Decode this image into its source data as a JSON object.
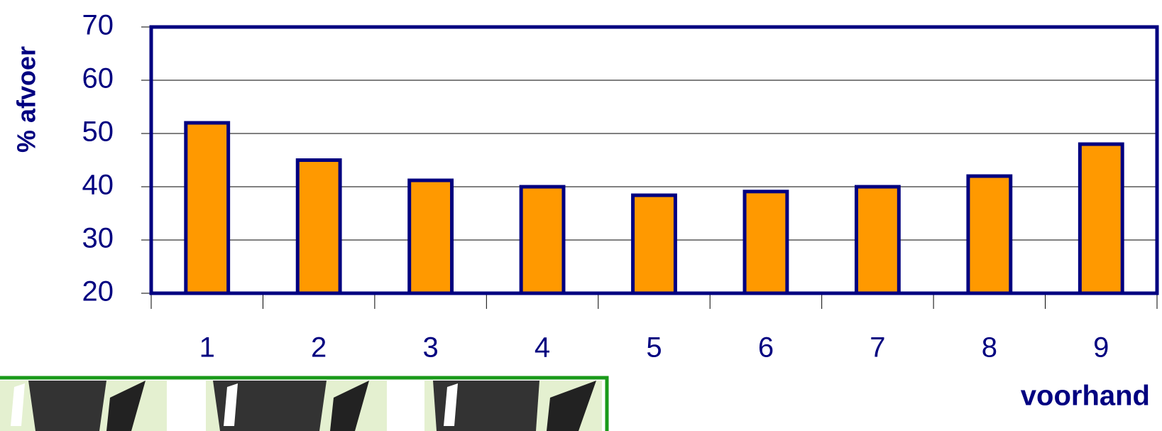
{
  "chart_data": {
    "type": "bar",
    "x_label": "voorhand",
    "y_label": "% afvoer",
    "categories": [
      "1",
      "2",
      "3",
      "4",
      "5",
      "6",
      "7",
      "8",
      "9"
    ],
    "values": [
      52,
      45,
      41.2,
      40,
      38.4,
      39.1,
      40,
      42,
      48
    ],
    "color": "#ff9900",
    "ylim": [
      20,
      70
    ],
    "yticks": [
      20,
      30,
      40,
      50,
      60,
      70
    ],
    "grid": true
  }
}
